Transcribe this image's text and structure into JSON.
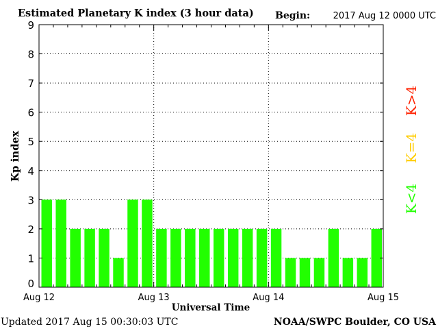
{
  "chart_data": {
    "type": "bar",
    "title": "Estimated Planetary K index (3 hour data)",
    "begin_label": "Begin:",
    "begin_value": "2017 Aug 12 0000 UTC",
    "ylabel": "Kp index",
    "xlabel": "Universal Time",
    "ylim": [
      0,
      9
    ],
    "yticks": [
      "0",
      "1",
      "2",
      "3",
      "4",
      "5",
      "6",
      "7",
      "8",
      "9"
    ],
    "xtick_labels": [
      "Aug 12",
      "Aug 13",
      "Aug 14",
      "Aug 15"
    ],
    "interval_hours": 3,
    "values": [
      3,
      3,
      2,
      2,
      2,
      1,
      3,
      3,
      2,
      2,
      2,
      2,
      2,
      2,
      2,
      2,
      2,
      1,
      1,
      1,
      2,
      1,
      1,
      2
    ],
    "bar_color": "#22ff00",
    "grid": "dotted",
    "legend": {
      "placement": "right",
      "items": [
        {
          "label": "K<4",
          "color": "#22ff00"
        },
        {
          "label": "K=4",
          "color": "#ffcc00"
        },
        {
          "label": "K>4",
          "color": "#ff2200"
        }
      ]
    },
    "updated": "Updated 2017 Aug 15 00:30:03 UTC",
    "source": "NOAA/SWPC Boulder, CO USA"
  }
}
